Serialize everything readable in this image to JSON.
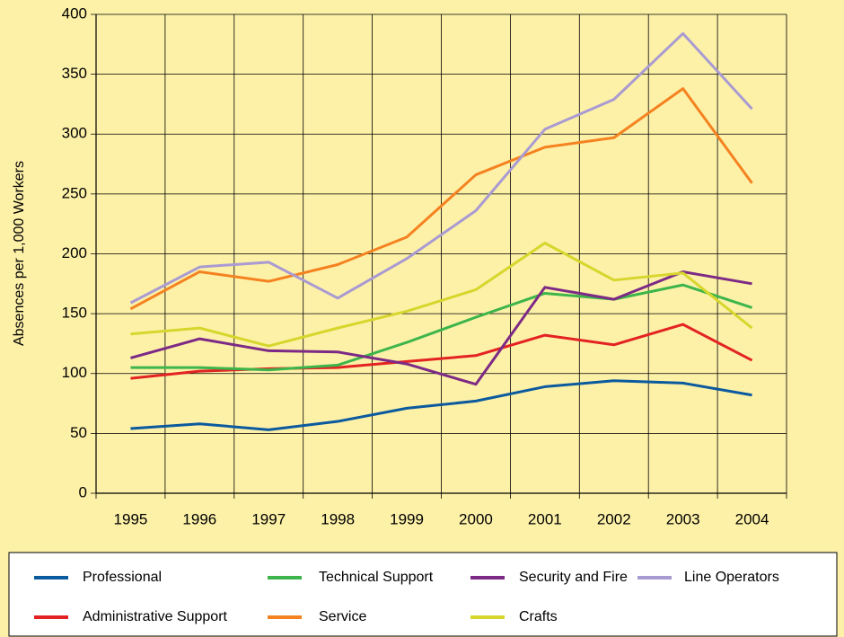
{
  "chart_data": {
    "type": "line",
    "y_label": "Absences per 1,000 Workers",
    "categories": [
      "1995",
      "1996",
      "1997",
      "1998",
      "1999",
      "2000",
      "2001",
      "2002",
      "2003",
      "2004"
    ],
    "series": [
      {
        "name": "Professional",
        "color": "#0b5a9e",
        "values": [
          54,
          58,
          53,
          60,
          71,
          77,
          89,
          94,
          92,
          82
        ]
      },
      {
        "name": "Administrative Support",
        "color": "#e32322",
        "values": [
          96,
          102,
          104,
          105,
          110,
          115,
          132,
          124,
          141,
          111
        ]
      },
      {
        "name": "Technical Support",
        "color": "#3db54a",
        "values": [
          105,
          105,
          103,
          107,
          126,
          147,
          167,
          162,
          174,
          155
        ]
      },
      {
        "name": "Service",
        "color": "#f58220",
        "values": [
          154,
          185,
          177,
          191,
          214,
          266,
          289,
          297,
          338,
          259
        ]
      },
      {
        "name": "Security and Fire",
        "color": "#7c2a85",
        "values": [
          113,
          129,
          119,
          118,
          108,
          91,
          172,
          162,
          185,
          175
        ]
      },
      {
        "name": "Crafts",
        "color": "#d6d62c",
        "values": [
          133,
          138,
          123,
          138,
          152,
          170,
          209,
          178,
          184,
          138
        ]
      },
      {
        "name": "Line Operators",
        "color": "#a99bd2",
        "values": [
          159,
          189,
          193,
          163,
          196,
          236,
          304,
          329,
          384,
          321
        ]
      }
    ],
    "ylim": [
      0,
      400
    ],
    "yticks": [
      0,
      50,
      100,
      150,
      200,
      250,
      300,
      350,
      400
    ],
    "grid": true
  }
}
